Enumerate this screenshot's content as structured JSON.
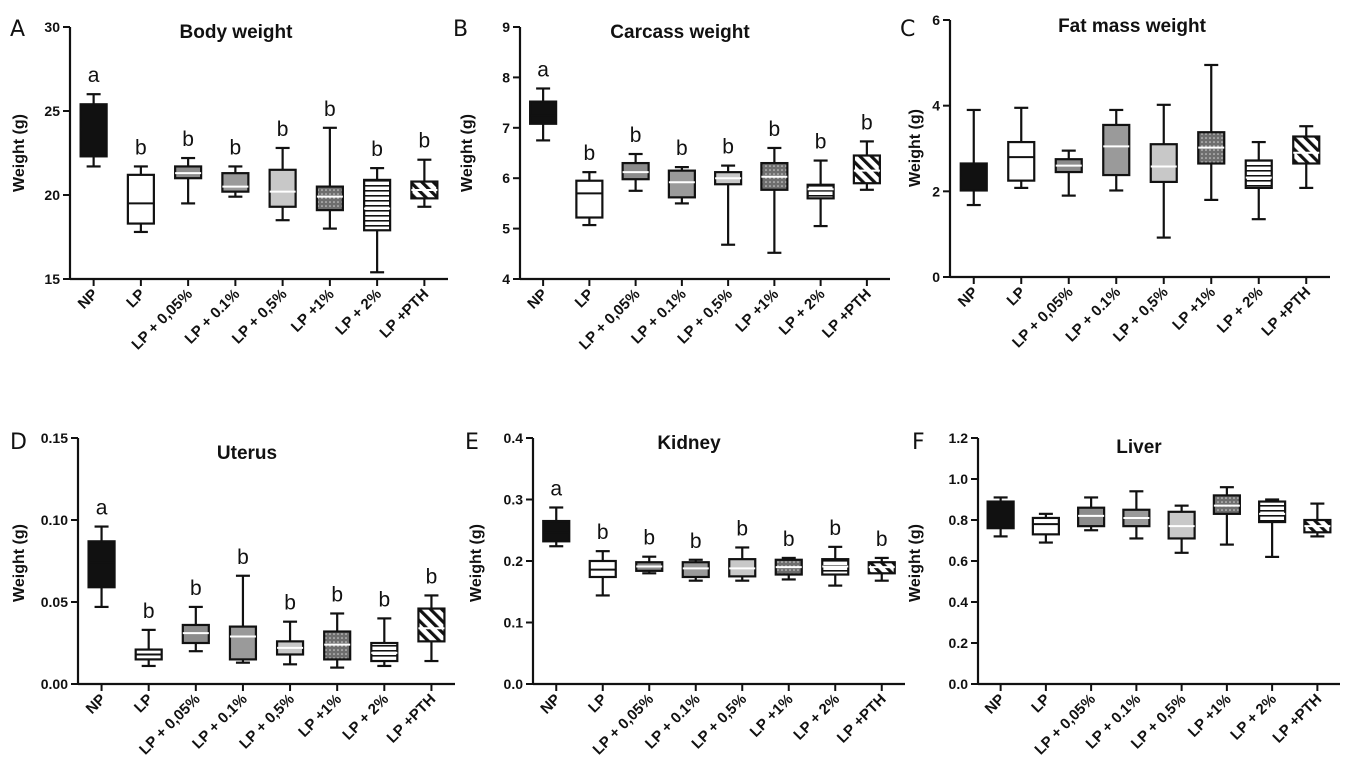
{
  "chart_data": [
    {
      "panel": "A",
      "type": "box",
      "title": "Body weight",
      "ylabel": "Weight (g)",
      "ylim": [
        15,
        30
      ],
      "yticks": [
        15,
        20,
        25,
        30
      ],
      "categories": [
        "NP",
        "LP",
        "LP + 0,05%",
        "LP + 0.1%",
        "LP + 0,5%",
        "LP +1%",
        "LP + 2%",
        "LP +PTH"
      ],
      "boxes": [
        {
          "min": 21.7,
          "q1": 22.3,
          "median": 23.9,
          "q3": 25.4,
          "max": 26.0
        },
        {
          "min": 17.8,
          "q1": 18.3,
          "median": 19.5,
          "q3": 21.2,
          "max": 21.7
        },
        {
          "min": 19.5,
          "q1": 21.0,
          "median": 21.3,
          "q3": 21.7,
          "max": 22.2
        },
        {
          "min": 19.9,
          "q1": 20.2,
          "median": 20.5,
          "q3": 21.3,
          "max": 21.7
        },
        {
          "min": 18.5,
          "q1": 19.3,
          "median": 20.2,
          "q3": 21.5,
          "max": 22.8
        },
        {
          "min": 18.0,
          "q1": 19.1,
          "median": 19.9,
          "q3": 20.5,
          "max": 24.0
        },
        {
          "min": 15.4,
          "q1": 17.9,
          "median": 19.2,
          "q3": 20.9,
          "max": 21.6
        },
        {
          "min": 19.3,
          "q1": 19.8,
          "median": 20.3,
          "q3": 20.8,
          "max": 22.1
        }
      ],
      "significance": [
        "a",
        "b",
        "b",
        "b",
        "b",
        "b",
        "b",
        "b"
      ]
    },
    {
      "panel": "B",
      "type": "box",
      "title": "Carcass weight",
      "ylabel": "Weight (g)",
      "ylim": [
        4,
        9
      ],
      "yticks": [
        4,
        5,
        6,
        7,
        8,
        9
      ],
      "categories": [
        "NP",
        "LP",
        "LP + 0,05%",
        "LP + 0.1%",
        "LP + 0,5%",
        "LP +1%",
        "LP + 2%",
        "LP +PTH"
      ],
      "boxes": [
        {
          "min": 6.75,
          "q1": 7.08,
          "median": 7.25,
          "q3": 7.52,
          "max": 7.78
        },
        {
          "min": 5.07,
          "q1": 5.22,
          "median": 5.7,
          "q3": 5.95,
          "max": 6.12
        },
        {
          "min": 5.75,
          "q1": 5.98,
          "median": 6.12,
          "q3": 6.3,
          "max": 6.48
        },
        {
          "min": 5.5,
          "q1": 5.62,
          "median": 5.92,
          "q3": 6.15,
          "max": 6.22
        },
        {
          "min": 4.68,
          "q1": 5.88,
          "median": 6.0,
          "q3": 6.12,
          "max": 6.25
        },
        {
          "min": 4.52,
          "q1": 5.77,
          "median": 6.03,
          "q3": 6.3,
          "max": 6.6
        },
        {
          "min": 5.05,
          "q1": 5.6,
          "median": 5.78,
          "q3": 5.87,
          "max": 6.35
        },
        {
          "min": 5.77,
          "q1": 5.9,
          "median": 6.15,
          "q3": 6.45,
          "max": 6.73
        }
      ],
      "significance": [
        "a",
        "b",
        "b",
        "b",
        "b",
        "b",
        "b",
        "b"
      ]
    },
    {
      "panel": "C",
      "type": "box",
      "title": "Fat mass weight",
      "ylabel": "Weight (g)",
      "ylim": [
        0,
        6
      ],
      "yticks": [
        0,
        2,
        4,
        6
      ],
      "categories": [
        "NP",
        "LP",
        "LP + 0,05%",
        "LP + 0.1%",
        "LP + 0,5%",
        "LP +1%",
        "LP + 2%",
        "LP +PTH"
      ],
      "boxes": [
        {
          "min": 1.68,
          "q1": 2.02,
          "median": 2.3,
          "q3": 2.65,
          "max": 3.9
        },
        {
          "min": 2.08,
          "q1": 2.25,
          "median": 2.8,
          "q3": 3.15,
          "max": 3.95
        },
        {
          "min": 1.9,
          "q1": 2.45,
          "median": 2.6,
          "q3": 2.75,
          "max": 2.95
        },
        {
          "min": 2.02,
          "q1": 2.38,
          "median": 3.05,
          "q3": 3.55,
          "max": 3.9
        },
        {
          "min": 0.92,
          "q1": 2.22,
          "median": 2.58,
          "q3": 3.1,
          "max": 4.02
        },
        {
          "min": 1.8,
          "q1": 2.65,
          "median": 3.02,
          "q3": 3.38,
          "max": 4.95
        },
        {
          "min": 1.35,
          "q1": 2.08,
          "median": 2.32,
          "q3": 2.72,
          "max": 3.15
        },
        {
          "min": 2.08,
          "q1": 2.65,
          "median": 2.9,
          "q3": 3.28,
          "max": 3.52
        }
      ],
      "significance": []
    },
    {
      "panel": "D",
      "type": "box",
      "title": "Uterus",
      "ylabel": "Weight (g)",
      "ylim": [
        0,
        0.15
      ],
      "yticks": [
        "0.00",
        "0.05",
        "0.10",
        "0.15"
      ],
      "categories": [
        "NP",
        "LP",
        "LP + 0,05%",
        "LP + 0.1%",
        "LP + 0,5%",
        "LP +1%",
        "LP + 2%",
        "LP +PTH"
      ],
      "boxes": [
        {
          "min": 0.047,
          "q1": 0.059,
          "median": 0.074,
          "q3": 0.087,
          "max": 0.096
        },
        {
          "min": 0.011,
          "q1": 0.015,
          "median": 0.018,
          "q3": 0.021,
          "max": 0.033
        },
        {
          "min": 0.02,
          "q1": 0.025,
          "median": 0.031,
          "q3": 0.036,
          "max": 0.047
        },
        {
          "min": 0.013,
          "q1": 0.015,
          "median": 0.029,
          "q3": 0.035,
          "max": 0.066
        },
        {
          "min": 0.012,
          "q1": 0.018,
          "median": 0.022,
          "q3": 0.026,
          "max": 0.038
        },
        {
          "min": 0.01,
          "q1": 0.015,
          "median": 0.024,
          "q3": 0.032,
          "max": 0.043
        },
        {
          "min": 0.011,
          "q1": 0.014,
          "median": 0.019,
          "q3": 0.025,
          "max": 0.04
        },
        {
          "min": 0.014,
          "q1": 0.026,
          "median": 0.034,
          "q3": 0.046,
          "max": 0.054
        }
      ],
      "significance": [
        "a",
        "b",
        "b",
        "b",
        "b",
        "b",
        "b",
        "b"
      ]
    },
    {
      "panel": "E",
      "type": "box",
      "title": "Kidney",
      "ylabel": "Weight (g)",
      "ylim": [
        0,
        0.4
      ],
      "yticks": [
        "0.0",
        "0.1",
        "0.2",
        "0.3",
        "0.4"
      ],
      "categories": [
        "NP",
        "LP",
        "LP + 0,05%",
        "LP + 0.1%",
        "LP + 0,5%",
        "LP +1%",
        "LP + 2%",
        "LP +PTH"
      ],
      "boxes": [
        {
          "min": 0.224,
          "q1": 0.232,
          "median": 0.247,
          "q3": 0.265,
          "max": 0.287
        },
        {
          "min": 0.144,
          "q1": 0.174,
          "median": 0.186,
          "q3": 0.2,
          "max": 0.216
        },
        {
          "min": 0.18,
          "q1": 0.184,
          "median": 0.191,
          "q3": 0.198,
          "max": 0.207
        },
        {
          "min": 0.168,
          "q1": 0.174,
          "median": 0.188,
          "q3": 0.198,
          "max": 0.202
        },
        {
          "min": 0.168,
          "q1": 0.175,
          "median": 0.188,
          "q3": 0.203,
          "max": 0.222
        },
        {
          "min": 0.17,
          "q1": 0.178,
          "median": 0.19,
          "q3": 0.202,
          "max": 0.205
        },
        {
          "min": 0.16,
          "q1": 0.178,
          "median": 0.191,
          "q3": 0.203,
          "max": 0.223
        },
        {
          "min": 0.168,
          "q1": 0.18,
          "median": 0.19,
          "q3": 0.198,
          "max": 0.205
        }
      ],
      "significance": [
        "a",
        "b",
        "b",
        "b",
        "b",
        "b",
        "b",
        "b"
      ]
    },
    {
      "panel": "F",
      "type": "box",
      "title": "Liver",
      "ylabel": "Weight (g)",
      "ylim": [
        0,
        1.2
      ],
      "yticks": [
        "0.0",
        "0.2",
        "0.4",
        "0.6",
        "0.8",
        "1.0",
        "1.2"
      ],
      "categories": [
        "NP",
        "LP",
        "LP + 0,05%",
        "LP + 0.1%",
        "LP + 0,5%",
        "LP +1%",
        "LP + 2%",
        "LP +PTH"
      ],
      "boxes": [
        {
          "min": 0.72,
          "q1": 0.76,
          "median": 0.81,
          "q3": 0.89,
          "max": 0.91
        },
        {
          "min": 0.69,
          "q1": 0.73,
          "median": 0.78,
          "q3": 0.81,
          "max": 0.83
        },
        {
          "min": 0.75,
          "q1": 0.77,
          "median": 0.82,
          "q3": 0.86,
          "max": 0.91
        },
        {
          "min": 0.71,
          "q1": 0.77,
          "median": 0.81,
          "q3": 0.85,
          "max": 0.94
        },
        {
          "min": 0.64,
          "q1": 0.71,
          "median": 0.77,
          "q3": 0.84,
          "max": 0.87
        },
        {
          "min": 0.68,
          "q1": 0.83,
          "median": 0.87,
          "q3": 0.92,
          "max": 0.96
        },
        {
          "min": 0.62,
          "q1": 0.79,
          "median": 0.83,
          "q3": 0.89,
          "max": 0.9
        },
        {
          "min": 0.72,
          "q1": 0.74,
          "median": 0.77,
          "q3": 0.8,
          "max": 0.88
        }
      ],
      "significance": []
    }
  ],
  "fills": {
    "NP": "solid-black",
    "LP": "white",
    "LP + 0,05%": "medium-gray",
    "LP + 0.1%": "darker-gray",
    "LP + 0,5%": "light-gray",
    "LP +1%": "dotted-dark",
    "LP + 2%": "horizontal-stripes",
    "LP +PTH": "diagonal-stripes"
  },
  "colors": {
    "ink": "#111111",
    "medium_gray": "#8c8c8c",
    "darker_gray": "#9a9a9a",
    "light_gray": "#c8c8c8",
    "dotted_dark": "#6e6e6e"
  }
}
